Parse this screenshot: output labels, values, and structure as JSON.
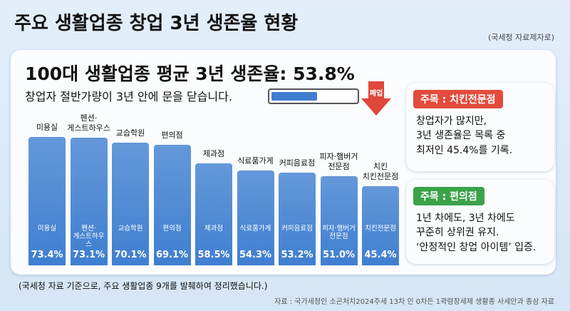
{
  "title": "주요 생활업종 창업 3년 생존율 현황",
  "source_note": "(국세청 자료제자로)",
  "headline": "100대 생활업종 평균 3년 생존율: 53.8%",
  "subheadline": "창업자 절반가량이 3년 안에 문을 닫습니다.",
  "arrow_label": "폐업",
  "callouts": [
    {
      "title": "주목 : 치킨전문점",
      "text": "창업자가 많지만,\n3년 생존율은 목록 중\n최저인 45.4%를 기록."
    },
    {
      "title": "주목 : 편의점",
      "text": "1년 차에도, 3년 차에도\n꾸준히 상위권 유지.\n‘안정적인 창업 아이템’ 입증."
    }
  ],
  "footnote": "(국세청 자료 기준으로, 주요 생활업종 9개를 발췌하여 정리했습니다.)",
  "source": "자료 : 국가세청인 소곤처치2024주세 13차 인 0차든 1곽령장세제 생활종 사세안과 종삼 자료",
  "chart_data": {
    "type": "bar",
    "categories": [
      "미용실",
      "펜션·\n게스트하우스",
      "교습학원",
      "편의점",
      "제과점",
      "식료품가게",
      "커피음료점",
      "피자·햄버거\n전문점",
      "치킨\n치킨전문점"
    ],
    "inner_labels": [
      "미용실",
      "펜션·\n게스트하우스",
      "교습학원",
      "편의점",
      "제과점",
      "식료품가게",
      "커피음료점",
      "피자·햄버거\n전문점",
      "치킨전문점"
    ],
    "values": [
      73.4,
      73.1,
      70.1,
      69.1,
      58.5,
      54.3,
      53.2,
      51,
      45.4
    ],
    "value_labels": [
      "73.4%",
      "73.1%",
      "70.1%",
      "69.1%",
      "58.5%",
      "54.3%",
      "53.2%",
      "51.0%",
      "45.4%"
    ],
    "color": "#3f7fd0"
  }
}
